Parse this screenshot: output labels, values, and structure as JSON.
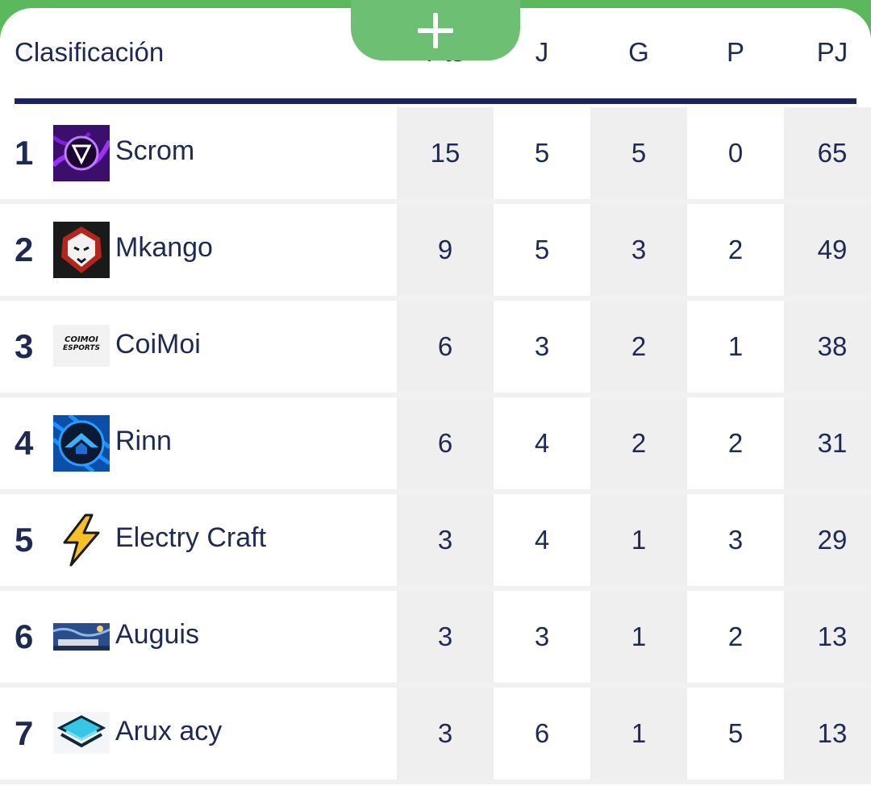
{
  "header": {
    "title": "Clasificación",
    "columns": [
      "Pts",
      "J",
      "G",
      "P",
      "PJ"
    ]
  },
  "fab": {
    "icon": "plus-icon"
  },
  "colors": {
    "accent": "#5cb85c",
    "text": "#1f2a52",
    "rule": "#1a2456",
    "shade": "#efefef"
  },
  "rows": [
    {
      "rank": "1",
      "team": "Scrom",
      "logo": "scrom-logo-icon",
      "pts": "15",
      "j": "5",
      "g": "5",
      "p": "0",
      "pj": "65"
    },
    {
      "rank": "2",
      "team": "Mkango",
      "logo": "lion-logo-icon",
      "pts": "9",
      "j": "5",
      "g": "3",
      "p": "2",
      "pj": "49"
    },
    {
      "rank": "3",
      "team": "CoiMoi",
      "logo": "coimoi-logo-icon",
      "logo_text": [
        "COIMOI",
        "ESPORTS"
      ],
      "pts": "6",
      "j": "3",
      "g": "2",
      "p": "1",
      "pj": "38"
    },
    {
      "rank": "4",
      "team": "Rinn",
      "logo": "rinn-logo-icon",
      "pts": "6",
      "j": "4",
      "g": "2",
      "p": "2",
      "pj": "31"
    },
    {
      "rank": "5",
      "team": "Electry Craft",
      "logo": "lightning-bolt-icon",
      "pts": "3",
      "j": "4",
      "g": "1",
      "p": "3",
      "pj": "29"
    },
    {
      "rank": "6",
      "team": "Auguis",
      "logo": "starry-night-icon",
      "pts": "3",
      "j": "3",
      "g": "1",
      "p": "2",
      "pj": "13"
    },
    {
      "rank": "7",
      "team": "Arux acy",
      "logo": "layers-logo-icon",
      "pts": "3",
      "j": "6",
      "g": "1",
      "p": "5",
      "pj": "13"
    }
  ]
}
